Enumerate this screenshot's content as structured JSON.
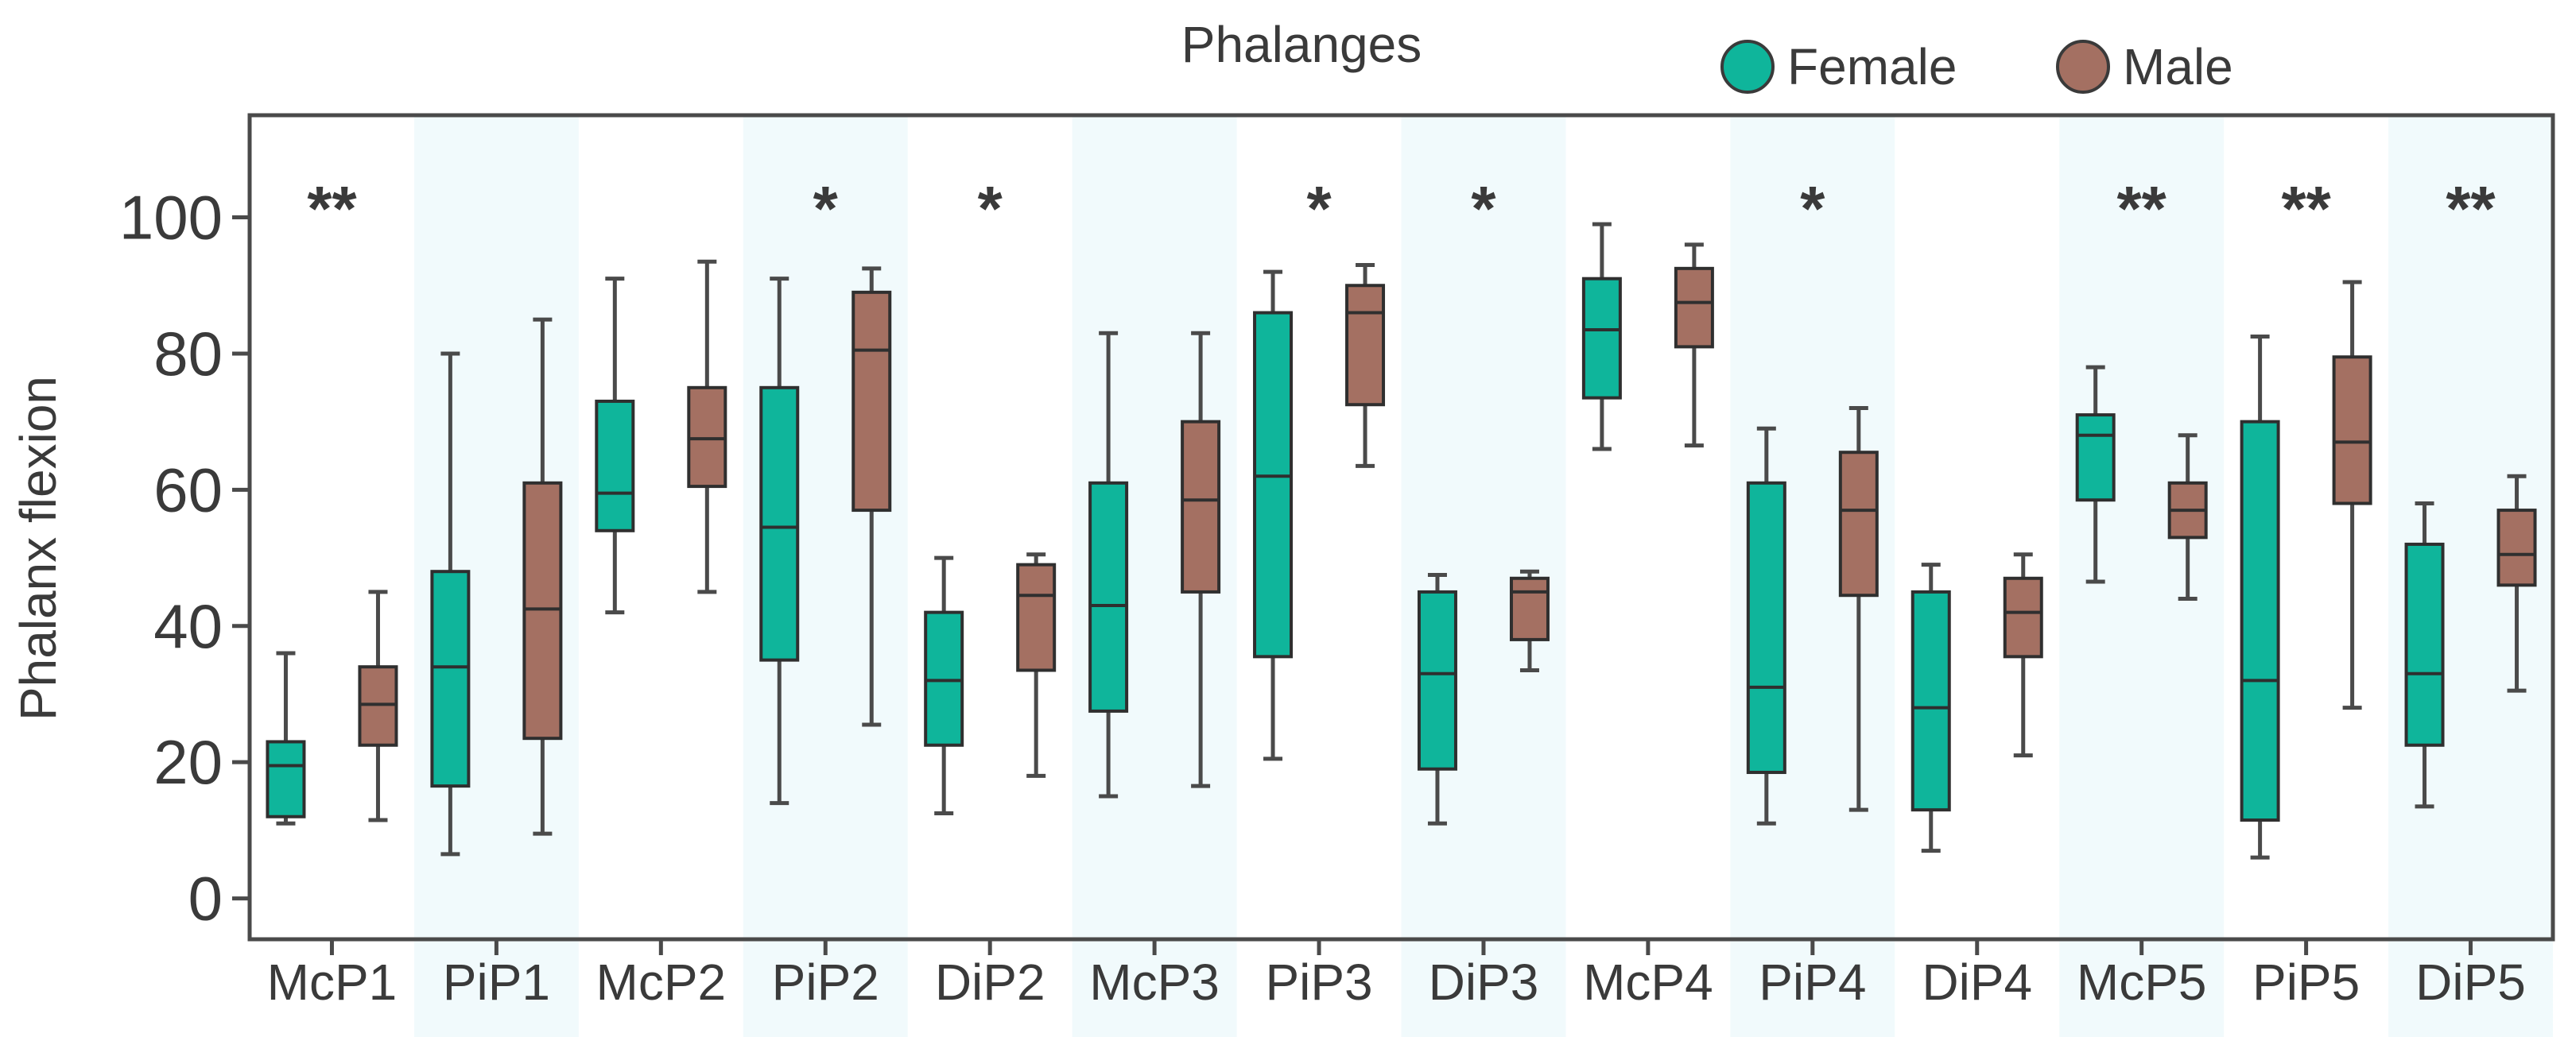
{
  "colors": {
    "female": "#0fb59b",
    "male": "#a47062",
    "band": "#f1fafc",
    "frame": "#4a4a4a",
    "whisker": "#4a4a4a"
  },
  "chart_data": {
    "type": "boxplot",
    "title": "Phalanges",
    "xlabel": "",
    "ylabel": "Phalanx flexion",
    "ylim": [
      -6,
      115
    ],
    "yticks": [
      0,
      20,
      40,
      60,
      80,
      100
    ],
    "legend": {
      "position": "top-right",
      "entries": [
        "Female",
        "Male"
      ]
    },
    "categories": [
      "McP1",
      "PiP1",
      "McP2",
      "PiP2",
      "DiP2",
      "McP3",
      "PiP3",
      "DiP3",
      "McP4",
      "PiP4",
      "DiP4",
      "McP5",
      "PiP5",
      "DiP5"
    ],
    "significance": [
      "**",
      "",
      "",
      "*",
      "*",
      "",
      "*",
      "*",
      "",
      "*",
      "",
      "**",
      "**",
      "**"
    ],
    "series": [
      {
        "name": "Female",
        "boxes": [
          {
            "min": 11,
            "q1": 12,
            "median": 19.5,
            "q3": 23,
            "max": 36
          },
          {
            "min": 6.5,
            "q1": 16.5,
            "median": 34,
            "q3": 48,
            "max": 80
          },
          {
            "min": 42,
            "q1": 54,
            "median": 59.5,
            "q3": 73,
            "max": 91
          },
          {
            "min": 14,
            "q1": 35,
            "median": 54.5,
            "q3": 75,
            "max": 91
          },
          {
            "min": 12.5,
            "q1": 22.5,
            "median": 32,
            "q3": 42,
            "max": 50
          },
          {
            "min": 15,
            "q1": 27.5,
            "median": 43,
            "q3": 61,
            "max": 83
          },
          {
            "min": 20.5,
            "q1": 35.5,
            "median": 62,
            "q3": 86,
            "max": 92
          },
          {
            "min": 11,
            "q1": 19,
            "median": 33,
            "q3": 45,
            "max": 47.5
          },
          {
            "min": 66,
            "q1": 73.5,
            "median": 83.5,
            "q3": 91,
            "max": 99
          },
          {
            "min": 11,
            "q1": 18.5,
            "median": 31,
            "q3": 61,
            "max": 69
          },
          {
            "min": 7,
            "q1": 13,
            "median": 28,
            "q3": 45,
            "max": 49
          },
          {
            "min": 46.5,
            "q1": 58.5,
            "median": 68,
            "q3": 71,
            "max": 78
          },
          {
            "min": 6,
            "q1": 11.5,
            "median": 32,
            "q3": 70,
            "max": 82.5
          },
          {
            "min": 13.5,
            "q1": 22.5,
            "median": 33,
            "q3": 52,
            "max": 58
          }
        ]
      },
      {
        "name": "Male",
        "boxes": [
          {
            "min": 11.5,
            "q1": 22.5,
            "median": 28.5,
            "q3": 34,
            "max": 45
          },
          {
            "min": 9.5,
            "q1": 23.5,
            "median": 42.5,
            "q3": 61,
            "max": 85
          },
          {
            "min": 45,
            "q1": 60.5,
            "median": 67.5,
            "q3": 75,
            "max": 93.5
          },
          {
            "min": 25.5,
            "q1": 57,
            "median": 80.5,
            "q3": 89,
            "max": 92.5
          },
          {
            "min": 18,
            "q1": 33.5,
            "median": 44.5,
            "q3": 49,
            "max": 50.5
          },
          {
            "min": 16.5,
            "q1": 45,
            "median": 58.5,
            "q3": 70,
            "max": 83
          },
          {
            "min": 63.5,
            "q1": 72.5,
            "median": 86,
            "q3": 90,
            "max": 93
          },
          {
            "min": 33.5,
            "q1": 38,
            "median": 45,
            "q3": 47,
            "max": 48
          },
          {
            "min": 66.5,
            "q1": 81,
            "median": 87.5,
            "q3": 92.5,
            "max": 96
          },
          {
            "min": 13,
            "q1": 44.5,
            "median": 57,
            "q3": 65.5,
            "max": 72
          },
          {
            "min": 21,
            "q1": 35.5,
            "median": 42,
            "q3": 47,
            "max": 50.5
          },
          {
            "min": 44,
            "q1": 53,
            "median": 57,
            "q3": 61,
            "max": 68
          },
          {
            "min": 28,
            "q1": 58,
            "median": 67,
            "q3": 79.5,
            "max": 90.5
          },
          {
            "min": 30.5,
            "q1": 46,
            "median": 50.5,
            "q3": 57,
            "max": 62
          }
        ]
      }
    ]
  }
}
